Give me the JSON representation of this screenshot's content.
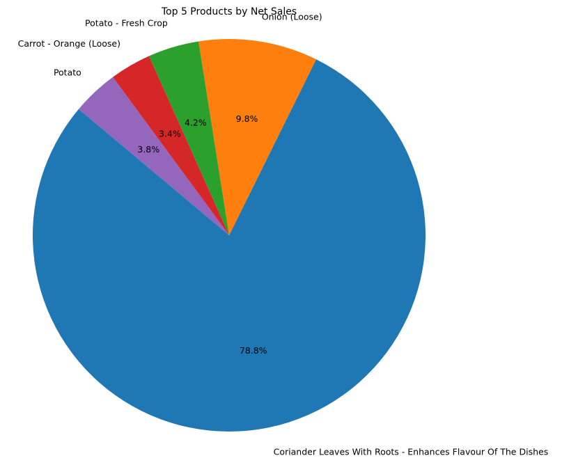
{
  "chart_data": {
    "type": "pie",
    "title": "Top 5 Products by Net Sales",
    "start_angle_deg": 140,
    "direction": "counterclockwise",
    "slices": [
      {
        "label": "Coriander Leaves With Roots - Enhances Flavour Of The Dishes",
        "percent": 78.8,
        "pct_label": "78.8%",
        "color": "#1f77b4"
      },
      {
        "label": "Onion (Loose)",
        "percent": 9.8,
        "pct_label": "9.8%",
        "color": "#ff7f0e"
      },
      {
        "label": "Potato - Fresh Crop",
        "percent": 4.2,
        "pct_label": "4.2%",
        "color": "#2ca02c"
      },
      {
        "label": "Carrot - Orange (Loose)",
        "percent": 3.4,
        "pct_label": "3.4%",
        "color": "#d62728"
      },
      {
        "label": "Potato",
        "percent": 3.8,
        "pct_label": "3.8%",
        "color": "#9467bd"
      }
    ]
  }
}
